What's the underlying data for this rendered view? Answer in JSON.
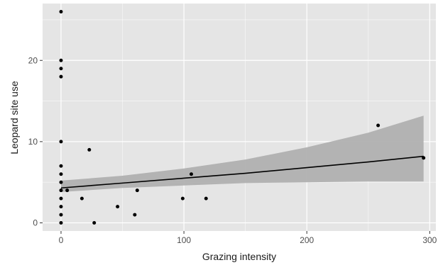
{
  "chart_data": {
    "type": "scatter",
    "xlabel": "Grazing intensity",
    "ylabel": "Leopard site use",
    "xlim": [
      -15,
      305
    ],
    "ylim": [
      -1,
      27
    ],
    "x_ticks": [
      0,
      100,
      200,
      300
    ],
    "y_ticks": [
      0,
      10,
      20
    ],
    "grid": true,
    "colors": {
      "panel": "#e5e5e5",
      "grid": "#ffffff",
      "points": "#000000",
      "line": "#000000",
      "band": "#adadad"
    },
    "points": [
      {
        "x": 0,
        "y": 26
      },
      {
        "x": 0,
        "y": 20
      },
      {
        "x": 0,
        "y": 19
      },
      {
        "x": 0,
        "y": 18
      },
      {
        "x": 0,
        "y": 10
      },
      {
        "x": 0,
        "y": 7
      },
      {
        "x": 0,
        "y": 6
      },
      {
        "x": 0,
        "y": 5
      },
      {
        "x": 0,
        "y": 4
      },
      {
        "x": 0,
        "y": 3
      },
      {
        "x": 0,
        "y": 2
      },
      {
        "x": 0,
        "y": 1
      },
      {
        "x": 0,
        "y": 0
      },
      {
        "x": 5,
        "y": 4
      },
      {
        "x": 17,
        "y": 3
      },
      {
        "x": 23,
        "y": 9
      },
      {
        "x": 27,
        "y": 0
      },
      {
        "x": 46,
        "y": 2
      },
      {
        "x": 60,
        "y": 1
      },
      {
        "x": 62,
        "y": 4
      },
      {
        "x": 99,
        "y": 3
      },
      {
        "x": 106,
        "y": 6
      },
      {
        "x": 118,
        "y": 3
      },
      {
        "x": 258,
        "y": 12
      },
      {
        "x": 295,
        "y": 8
      }
    ],
    "fit_line": {
      "x": [
        0,
        50,
        100,
        150,
        200,
        250,
        295
      ],
      "y": [
        4.3,
        4.9,
        5.5,
        6.1,
        6.8,
        7.5,
        8.2
      ],
      "lower": [
        3.8,
        4.3,
        4.6,
        4.9,
        5.0,
        5.1,
        5.1
      ],
      "upper": [
        5.2,
        5.8,
        6.7,
        7.8,
        9.3,
        11.1,
        13.2
      ]
    }
  }
}
